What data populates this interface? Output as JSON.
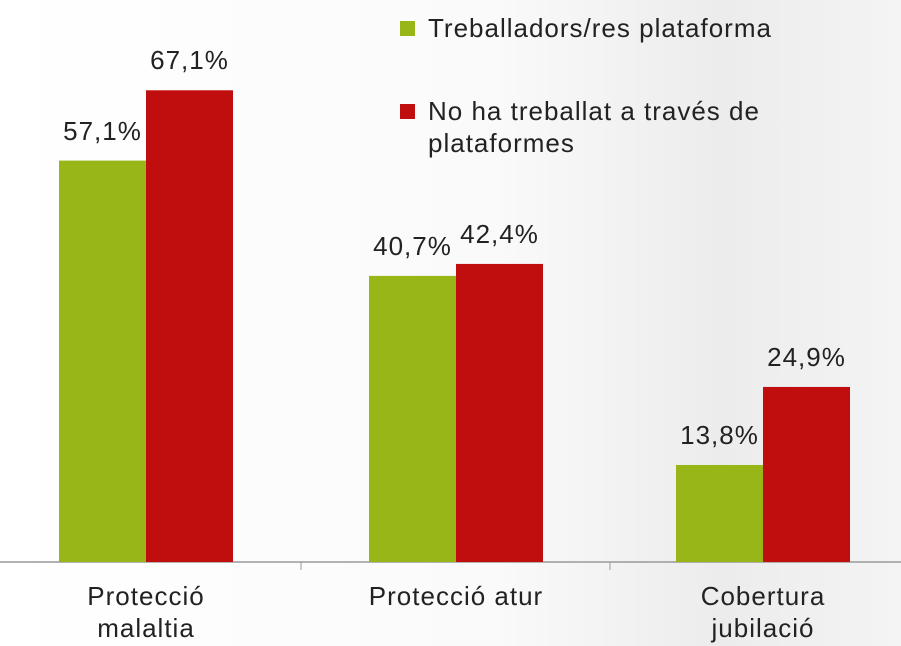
{
  "chart_data": {
    "type": "bar",
    "categories": [
      "Protecció malaltia",
      "Protecció atur",
      "Cobertura jubilació"
    ],
    "series": [
      {
        "name": "Treballadors/res plataforma",
        "color": "#99b619",
        "values": [
          57.1,
          40.7,
          13.8
        ],
        "value_labels": [
          "57,1%",
          "40,7%",
          "13,8%"
        ]
      },
      {
        "name": "No ha treballat a través de plataformes",
        "color": "#c00d0d",
        "values": [
          67.1,
          42.4,
          24.9
        ],
        "value_labels": [
          "67,1%",
          "42,4%",
          "24,9%"
        ]
      }
    ]
  }
}
